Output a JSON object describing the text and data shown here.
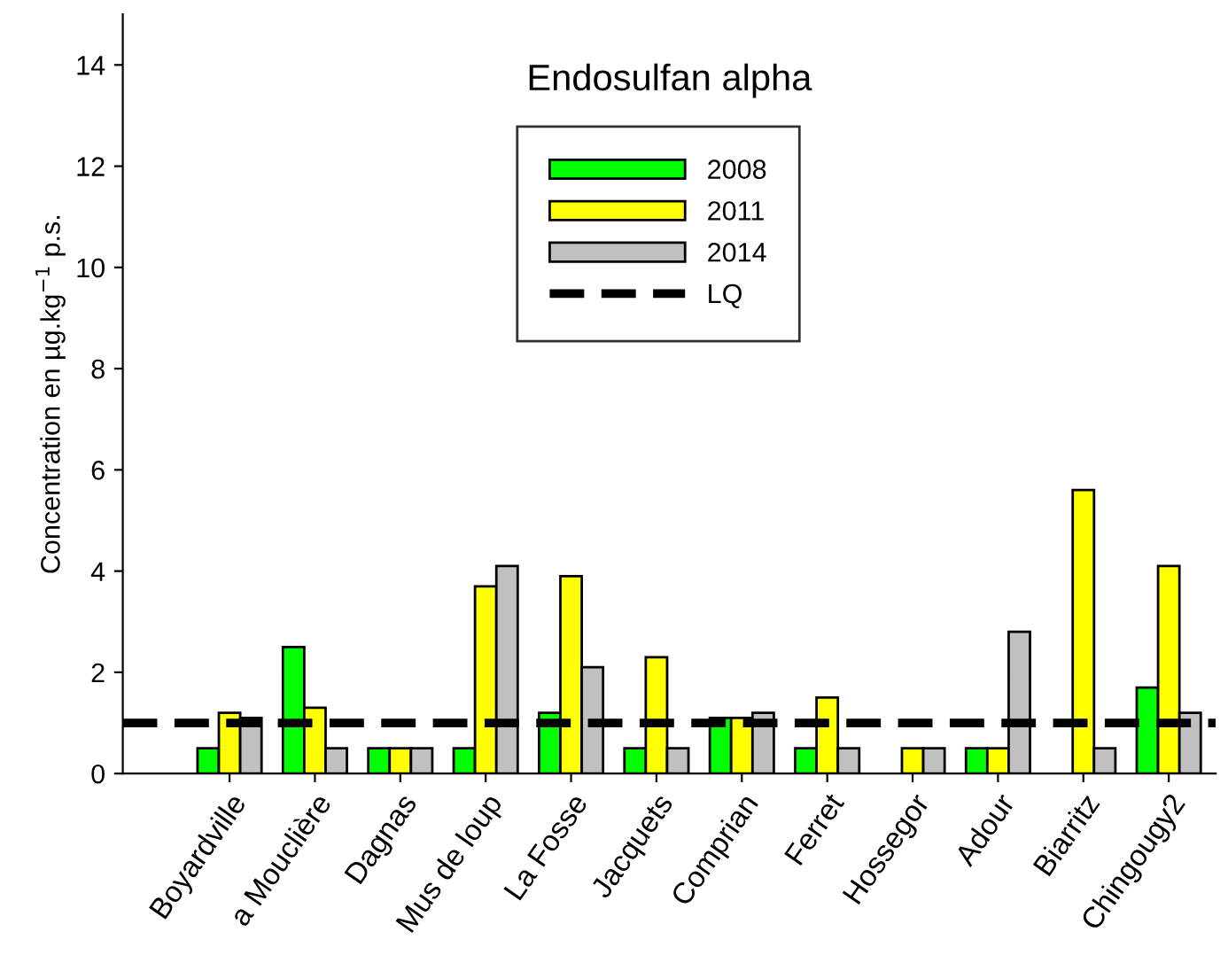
{
  "chart_data": {
    "type": "bar",
    "title": "Endosulfan alpha",
    "ylabel": "Concentration en µg.kg$^{−1}$ p.s.",
    "categories": [
      "Boyardville",
      "a Mouclière",
      "Dagnas",
      "Mus de loup",
      "La Fosse",
      "Jacquets",
      "Comprian",
      "Ferret",
      "Hossegor",
      "Adour",
      "Biarritz",
      "Chingougy2"
    ],
    "series": [
      {
        "name": "2008",
        "color": "#00ff00",
        "values": [
          0.5,
          2.5,
          0.5,
          0.5,
          1.2,
          0.5,
          1.1,
          0.5,
          null,
          0.5,
          null,
          1.7
        ]
      },
      {
        "name": "2011",
        "color": "#ffff00",
        "values": [
          1.2,
          1.3,
          0.5,
          3.7,
          3.9,
          2.3,
          1.1,
          1.5,
          0.5,
          0.5,
          5.6,
          4.1
        ]
      },
      {
        "name": "2014",
        "color": "#c0c0c0",
        "values": [
          1.1,
          0.5,
          0.5,
          4.1,
          2.1,
          0.5,
          1.2,
          0.5,
          0.5,
          2.8,
          0.5,
          1.2
        ]
      }
    ],
    "ref_lines": [
      {
        "axis": "y",
        "value": 1,
        "label": "LQ",
        "color": "#000000",
        "line_style": "dashed"
      }
    ],
    "ylim": [
      0,
      15
    ],
    "yticks": [
      0,
      2,
      4,
      6,
      8,
      10,
      12,
      14
    ],
    "grid": false,
    "legend": "top"
  }
}
